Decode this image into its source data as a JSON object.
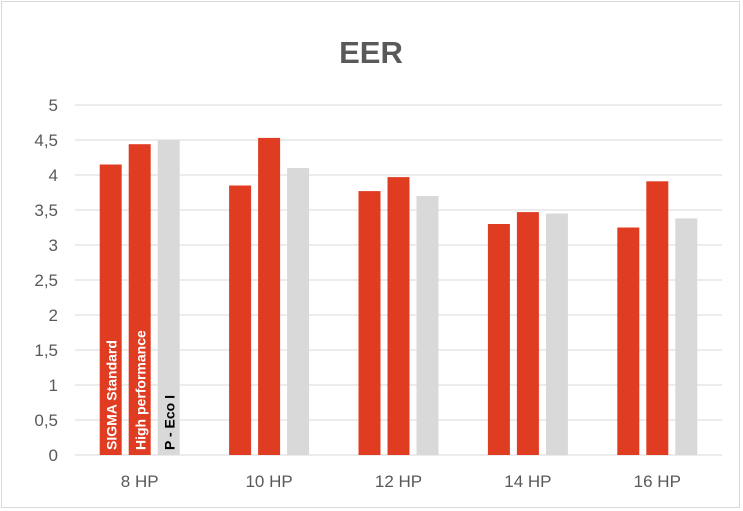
{
  "chart_data": {
    "type": "bar",
    "title": "EER",
    "categories": [
      "8 HP",
      "10 HP",
      "12 HP",
      "14 HP",
      "16 HP"
    ],
    "series": [
      {
        "name": "SIGMA Standard",
        "color": "#e03c22",
        "values": [
          4.15,
          3.85,
          3.77,
          3.3,
          3.25
        ]
      },
      {
        "name": "High performance",
        "color": "#e03c22",
        "values": [
          4.44,
          4.53,
          3.97,
          3.47,
          3.91
        ]
      },
      {
        "name": "P - Eco I",
        "color": "#d9d9d9",
        "values": [
          4.5,
          4.1,
          3.7,
          3.45,
          3.38
        ]
      }
    ],
    "yticks": [
      "0",
      "0,5",
      "1",
      "1,5",
      "2",
      "2,5",
      "3",
      "3,5",
      "4",
      "4,5",
      "5"
    ],
    "ylim": [
      0,
      5
    ],
    "grid": true,
    "legend": "none"
  }
}
